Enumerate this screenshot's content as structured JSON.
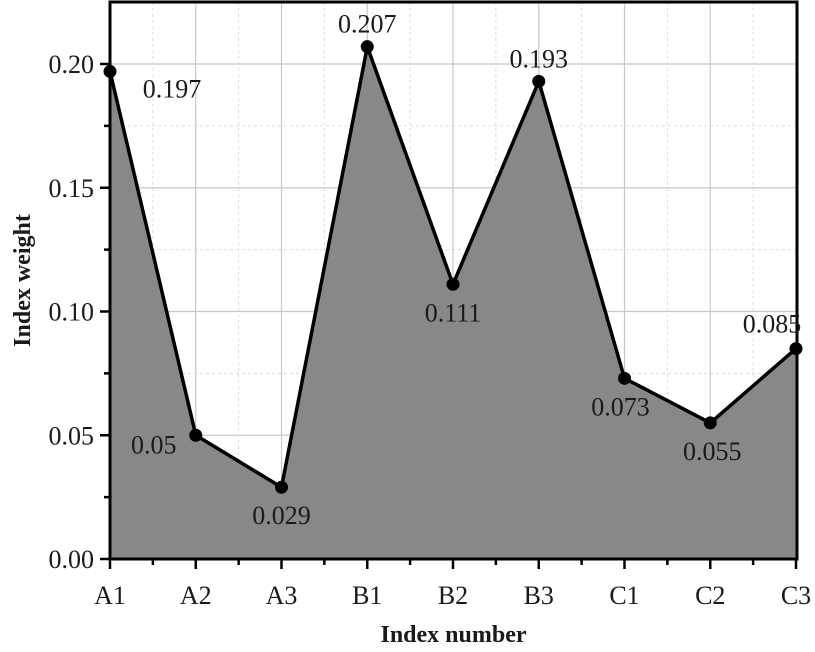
{
  "chart_data": {
    "type": "area",
    "title": "",
    "xlabel": "Index number",
    "ylabel": "Index weight",
    "categories": [
      "A1",
      "A2",
      "A3",
      "B1",
      "B2",
      "B3",
      "C1",
      "C2",
      "C3"
    ],
    "values": [
      0.197,
      0.05,
      0.029,
      0.207,
      0.111,
      0.193,
      0.073,
      0.055,
      0.085
    ],
    "data_labels": [
      "0.197",
      "0.05",
      "0.029",
      "0.207",
      "0.111",
      "0.193",
      "0.073",
      "0.055",
      "0.085"
    ],
    "ylim": [
      0,
      0.225
    ],
    "yticks": [
      0.0,
      0.05,
      0.1,
      0.15,
      0.2
    ],
    "ytick_labels": [
      "0.00",
      "0.05",
      "0.10",
      "0.15",
      "0.20"
    ],
    "grid": true,
    "legend": null,
    "colors": {
      "fill": "#888888",
      "line": "#000000",
      "marker": "#000000",
      "grid_major": "#c8c8c8",
      "grid_minor": "#dcdcdc"
    }
  }
}
